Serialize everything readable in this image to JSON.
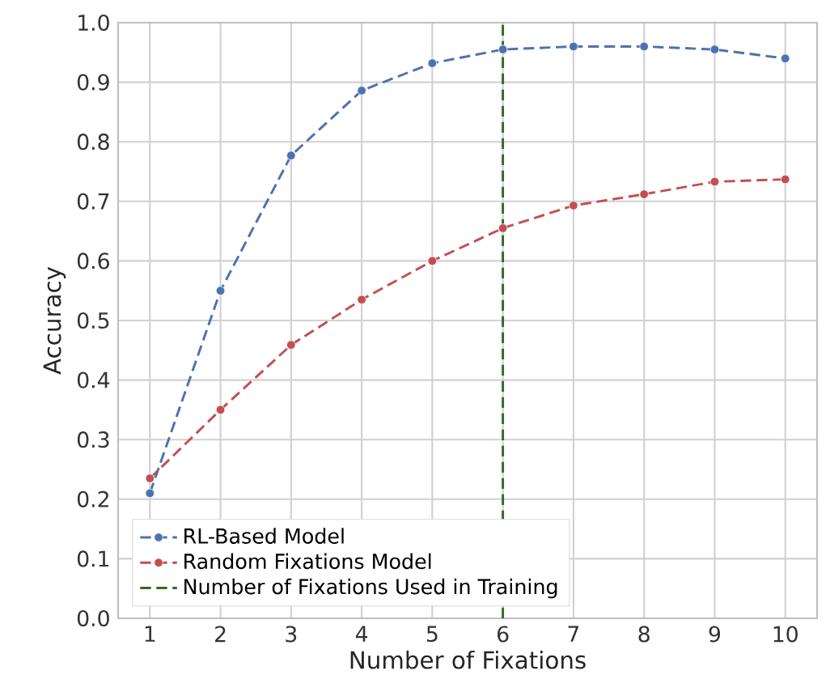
{
  "chart_data": {
    "type": "line",
    "xlabel": "Number of Fixations",
    "ylabel": "Accuracy",
    "x": [
      1,
      2,
      3,
      4,
      5,
      6,
      7,
      8,
      9,
      10
    ],
    "series": [
      {
        "name": "RL-Based Model",
        "color": "#4c72b0",
        "values": [
          0.21,
          0.55,
          0.777,
          0.886,
          0.932,
          0.955,
          0.96,
          0.96,
          0.955,
          0.94
        ]
      },
      {
        "name": "Random Fixations Model",
        "color": "#c44e52",
        "values": [
          0.235,
          0.35,
          0.459,
          0.535,
          0.6,
          0.655,
          0.693,
          0.712,
          0.733,
          0.737
        ]
      }
    ],
    "ref_lines": [
      {
        "axis": "x",
        "value": 6,
        "label": "Number of Fixations Used in Training",
        "color": "#2e6b1f",
        "line_style": "dashed"
      }
    ],
    "xlim": [
      0.55,
      10.45
    ],
    "ylim": [
      0,
      1
    ],
    "xticks": [
      1,
      2,
      3,
      4,
      5,
      6,
      7,
      8,
      9,
      10
    ],
    "yticks": [
      {
        "value": 0,
        "label": "0.0"
      },
      0.1,
      0.2,
      0.3,
      0.4,
      0.5,
      0.6,
      0.7,
      0.8,
      0.9,
      {
        "value": 1,
        "label": "1.0"
      }
    ],
    "grid": true,
    "legend": "bottom left",
    "marker": "circle",
    "line_style": "dashed"
  }
}
